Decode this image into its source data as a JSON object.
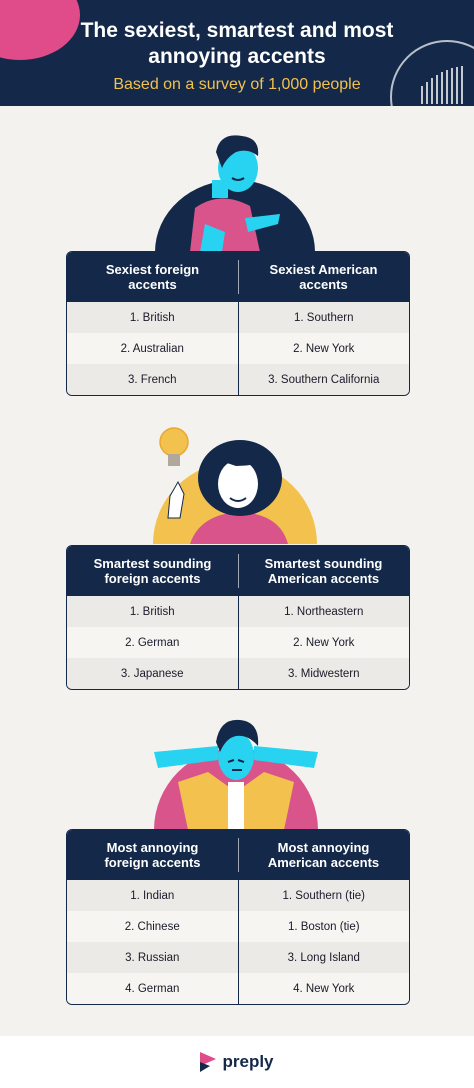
{
  "header": {
    "title_line1": "The sexiest, smartest and most",
    "title_line2": "annoying accents",
    "subtitle": "Based on a survey of 1,000 people"
  },
  "tables": [
    {
      "left_header": "Sexiest foreign\naccents",
      "right_header": "Sexiest American\naccents",
      "rows": [
        [
          "1. British",
          "1. Southern"
        ],
        [
          "2. Australian",
          "2. New York"
        ],
        [
          "3. French",
          "3. Southern California"
        ]
      ]
    },
    {
      "left_header": "Smartest sounding\nforeign accents",
      "right_header": "Smartest sounding\nAmerican accents",
      "rows": [
        [
          "1. British",
          "1. Northeastern"
        ],
        [
          "2. German",
          "2. New York"
        ],
        [
          "3. Japanese",
          "3. Midwestern"
        ]
      ]
    },
    {
      "left_header": "Most annoying\nforeign accents",
      "right_header": "Most annoying\nAmerican accents",
      "rows": [
        [
          "1. Indian",
          "1. Southern (tie)"
        ],
        [
          "2. Chinese",
          "1. Boston (tie)"
        ],
        [
          "3. Russian",
          "3. Long Island"
        ],
        [
          "4. German",
          "4. New York"
        ]
      ]
    }
  ],
  "footer": {
    "brand": "preply",
    "logo_icon": "preply-logo-icon"
  },
  "colors": {
    "navy": "#14294a",
    "pink": "#e04b8a",
    "yellow": "#f2c14e",
    "cyan": "#27d3f0",
    "background": "#f4f2ee"
  }
}
